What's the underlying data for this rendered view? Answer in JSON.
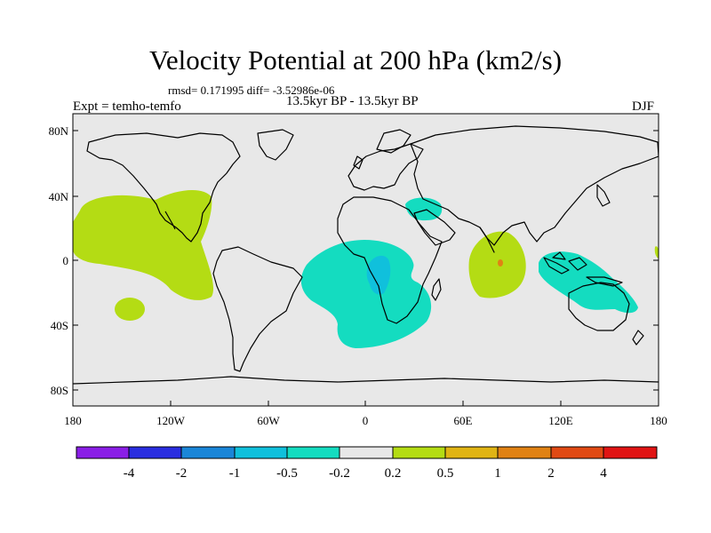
{
  "title": "Velocity Potential at 200 hPa (km2/s)",
  "stats": "rmsd= 0.171995 diff= -3.52986e-06",
  "period": "13.5kyr BP - 13.5kyr BP",
  "experiment": "Expt = temho-temfo",
  "season": "DJF",
  "map": {
    "background": "#e8e8e8",
    "lat_ticks": [
      "80N",
      "40N",
      "0",
      "40S",
      "80S"
    ],
    "lon_ticks": [
      "180",
      "120W",
      "60W",
      "0",
      "60E",
      "120E",
      "180"
    ]
  },
  "colorbar": {
    "labels": [
      "-4",
      "-2",
      "-1",
      "-0.5",
      "-0.2",
      "0.2",
      "0.5",
      "1",
      "2",
      "4"
    ],
    "colors": [
      "#8a1ee6",
      "#2a2ee0",
      "#1a86d8",
      "#10c0dc",
      "#14dcc0",
      "#e8e8e8",
      "#b4dc14",
      "#e0b414",
      "#e08214",
      "#e04a14",
      "#e01414"
    ]
  },
  "anomaly_colors": {
    "positive_0_2_to_0_5": "#b4dc14",
    "negative_0_2_to_0_5": "#14dcc0",
    "negative_0_5_to_1": "#10c0dc",
    "positive_1_to_2": "#e08214"
  }
}
